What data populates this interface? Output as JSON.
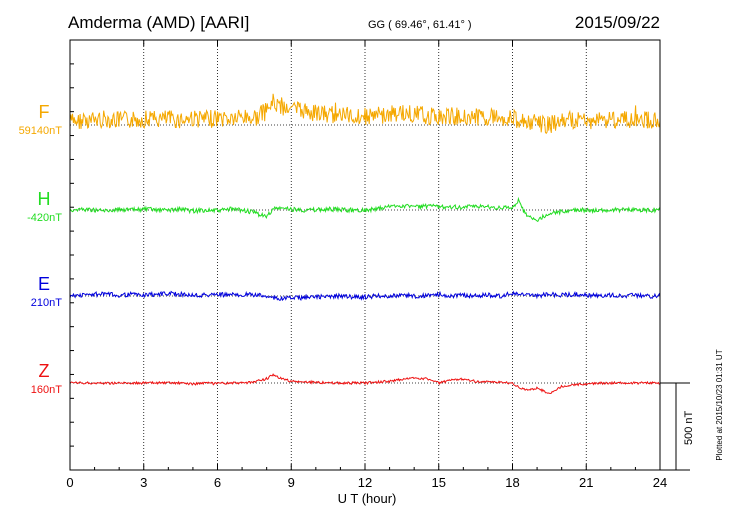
{
  "header": {
    "station": "Amderma (AMD)  [AARI]",
    "coords": "GG ( 69.46°,  61.41° )",
    "date": "2015/09/22"
  },
  "side_note": "Plotted at 2015/10/23 01:31  UT",
  "scale_bar": {
    "label": "500 nT",
    "nT": 500
  },
  "chart_data": {
    "type": "line",
    "xlabel": "U T (hour)",
    "xlim": [
      0,
      24
    ],
    "xticks": [
      0,
      3,
      6,
      9,
      12,
      15,
      18,
      21,
      24
    ],
    "xtick_labels": [
      "0",
      "3",
      "6",
      "9",
      "12",
      "15",
      "18",
      "21",
      "24"
    ],
    "grid": "vertical dotted every 3 h; dotted baseline per component",
    "series": [
      {
        "name": "F",
        "baseline_label": "59140nT",
        "color": "#f5a800",
        "x": [
          0,
          0.5,
          1,
          1.5,
          2,
          2.5,
          3,
          3.5,
          4,
          4.5,
          5,
          5.5,
          6,
          6.5,
          7,
          7.5,
          8,
          8.25,
          8.5,
          9,
          9.5,
          10,
          10.5,
          11,
          11.5,
          12,
          12.5,
          13,
          13.5,
          14,
          14.5,
          15,
          15.5,
          16,
          16.5,
          17,
          17.5,
          18,
          18.5,
          19,
          19.5,
          20,
          20.5,
          21,
          21.5,
          22,
          22.5,
          23,
          23.5,
          24
        ],
        "y": [
          20,
          25,
          30,
          35,
          25,
          30,
          35,
          30,
          35,
          30,
          40,
          30,
          40,
          35,
          45,
          40,
          80,
          130,
          110,
          95,
          80,
          70,
          55,
          60,
          50,
          50,
          55,
          60,
          70,
          60,
          55,
          45,
          50,
          50,
          45,
          50,
          45,
          40,
          20,
          10,
          0,
          20,
          30,
          25,
          30,
          35,
          30,
          25,
          30,
          25
        ]
      },
      {
        "name": "H",
        "baseline_label": "-420nT",
        "color": "#22dd22",
        "x": [
          0,
          0.5,
          1,
          1.5,
          2,
          2.5,
          3,
          3.5,
          4,
          4.5,
          5,
          5.5,
          6,
          6.5,
          7,
          7.5,
          8,
          8.25,
          8.5,
          9,
          9.5,
          10,
          10.5,
          11,
          11.5,
          12,
          12.5,
          13,
          13.5,
          14,
          14.5,
          15,
          15.5,
          16,
          16.5,
          17,
          17.5,
          18,
          18.25,
          18.5,
          19,
          19.5,
          20,
          20.5,
          21,
          21.5,
          22,
          22.5,
          23,
          23.5,
          24
        ],
        "y": [
          0,
          5,
          0,
          -5,
          5,
          0,
          5,
          0,
          0,
          5,
          -5,
          0,
          -5,
          5,
          0,
          -15,
          -40,
          5,
          10,
          5,
          0,
          0,
          5,
          0,
          0,
          0,
          5,
          20,
          25,
          20,
          20,
          20,
          20,
          15,
          20,
          20,
          10,
          15,
          55,
          -20,
          -60,
          -20,
          -10,
          0,
          0,
          -5,
          0,
          0,
          0,
          0,
          0
        ]
      },
      {
        "name": "E",
        "baseline_label": "210nT",
        "color": "#0000dd",
        "x": [
          0,
          0.5,
          1,
          1.5,
          2,
          2.5,
          3,
          3.5,
          4,
          4.5,
          5,
          5.5,
          6,
          6.5,
          7,
          7.5,
          8,
          8.5,
          9,
          9.5,
          10,
          10.5,
          11,
          11.5,
          12,
          12.5,
          13,
          13.5,
          14,
          14.5,
          15,
          15.5,
          16,
          16.5,
          17,
          17.5,
          18,
          18.5,
          19,
          19.5,
          20,
          20.5,
          21,
          21.5,
          22,
          22.5,
          23,
          23.5,
          24
        ],
        "y": [
          0,
          5,
          10,
          10,
          5,
          10,
          5,
          10,
          15,
          10,
          5,
          5,
          10,
          5,
          10,
          5,
          0,
          -15,
          -10,
          -10,
          -5,
          -5,
          0,
          -5,
          -5,
          0,
          0,
          5,
          0,
          0,
          10,
          0,
          5,
          0,
          5,
          0,
          15,
          5,
          0,
          10,
          5,
          10,
          5,
          0,
          5,
          0,
          5,
          0,
          0
        ]
      },
      {
        "name": "Z",
        "baseline_label": "160nT",
        "color": "#ee1111",
        "x": [
          0,
          0.5,
          1,
          1.5,
          2,
          2.5,
          3,
          3.5,
          4,
          4.5,
          5,
          5.5,
          6,
          6.5,
          7,
          7.5,
          8,
          8.25,
          8.5,
          9,
          9.5,
          10,
          10.5,
          11,
          11.5,
          12,
          12.5,
          13,
          13.5,
          14,
          14.5,
          15,
          15.5,
          16,
          16.5,
          17,
          17.5,
          18,
          18.25,
          18.5,
          19,
          19.5,
          20,
          20.5,
          21,
          21.5,
          22,
          22.5,
          23,
          23.5,
          24
        ],
        "y": [
          0,
          0,
          0,
          0,
          0,
          0,
          0,
          0,
          0,
          0,
          -5,
          0,
          -5,
          0,
          0,
          5,
          25,
          45,
          30,
          10,
          5,
          5,
          0,
          0,
          0,
          0,
          5,
          10,
          20,
          30,
          25,
          0,
          15,
          25,
          10,
          5,
          5,
          0,
          -25,
          -40,
          -30,
          -60,
          -20,
          -10,
          -5,
          0,
          0,
          0,
          0,
          0,
          0
        ]
      }
    ]
  }
}
